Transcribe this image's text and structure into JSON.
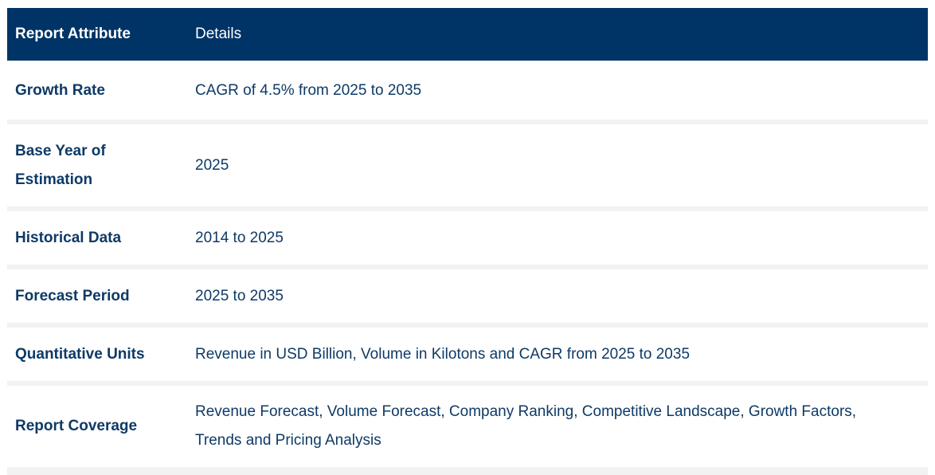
{
  "table": {
    "header": {
      "attribute": "Report Attribute",
      "details": "Details"
    },
    "rows": [
      {
        "attribute": "Growth Rate",
        "details": "CAGR of 4.5% from 2025 to 2035"
      },
      {
        "attribute": "Base Year of Estimation",
        "details": "2025"
      },
      {
        "attribute": "Historical Data",
        "details": "2014 to 2025"
      },
      {
        "attribute": "Forecast Period",
        "details": "2025 to 2035"
      },
      {
        "attribute": "Quantitative Units",
        "details": "Revenue in USD Billion, Volume in Kilotons and CAGR from 2025 to 2035"
      },
      {
        "attribute": "Report Coverage",
        "details": "Revenue Forecast, Volume Forecast, Company Ranking, Competitive Landscape, Growth Factors, Trends and Pricing Analysis"
      }
    ]
  },
  "colors": {
    "header_bg": "#003366",
    "header_text": "#ffffff",
    "body_text": "#0e3a66",
    "row_separator": "#f2f2f2"
  }
}
